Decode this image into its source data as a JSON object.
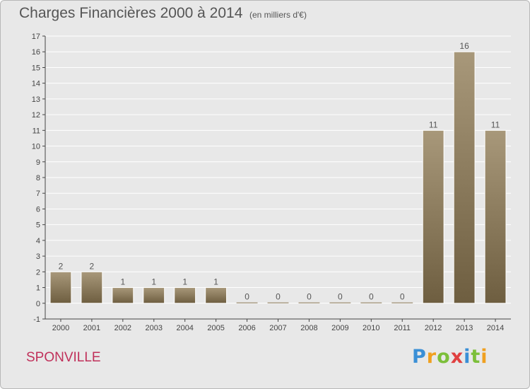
{
  "header": {
    "title": "Charges Financières 2000 à 2014",
    "subtitle": "(en milliers d'€)"
  },
  "footer": {
    "commune": "SPONVILLE",
    "logo_text": "Proxiti"
  },
  "colors": {
    "background": "#e8e8e8",
    "bar_top": "#a8987a",
    "bar_bottom": "#6e5e40",
    "axis": "#444444",
    "gridline": "#ffffff",
    "commune_text": "#c0305a"
  },
  "chart_data": {
    "type": "bar",
    "title": "Charges Financières 2000 à 2014",
    "subtitle": "(en milliers d'€)",
    "categories": [
      "2000",
      "2001",
      "2002",
      "2003",
      "2004",
      "2005",
      "2006",
      "2007",
      "2008",
      "2009",
      "2010",
      "2011",
      "2012",
      "2013",
      "2014"
    ],
    "values": [
      2,
      2,
      1,
      1,
      1,
      1,
      0,
      0,
      0,
      0,
      0,
      0,
      11,
      16,
      11
    ],
    "data_labels": [
      "2",
      "2",
      "1",
      "1",
      "1",
      "1",
      "0",
      "0",
      "0",
      "0",
      "0",
      "0",
      "11",
      "16",
      "11"
    ],
    "ylim": [
      -1,
      17
    ],
    "yticks": [
      -1,
      0,
      1,
      2,
      3,
      4,
      5,
      6,
      7,
      8,
      9,
      10,
      11,
      12,
      13,
      14,
      15,
      16,
      17
    ],
    "xlabel": "",
    "ylabel": "",
    "grid": true,
    "legend": "none"
  }
}
